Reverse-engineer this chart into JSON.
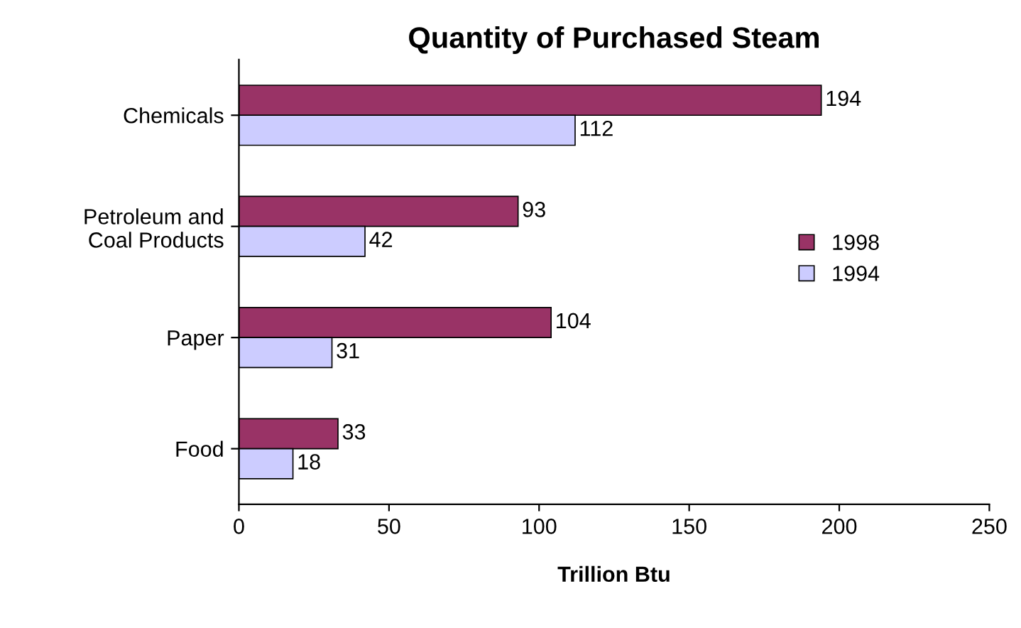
{
  "chart_data": {
    "type": "bar",
    "orientation": "horizontal",
    "title": "Quantity of Purchased Steam",
    "xlabel": "Trillion Btu",
    "categories": [
      "Chemicals",
      "Petroleum and\nCoal Products",
      "Paper",
      "Food"
    ],
    "series": [
      {
        "name": "1998",
        "color": "#993366",
        "values": [
          194,
          93,
          104,
          33
        ]
      },
      {
        "name": "1994",
        "color": "#ccccff",
        "values": [
          112,
          42,
          31,
          18
        ]
      }
    ],
    "xlim": [
      0,
      250
    ],
    "xticks": [
      0,
      50,
      100,
      150,
      200,
      250
    ],
    "data_labels": true,
    "legend": "right",
    "grid": false
  }
}
